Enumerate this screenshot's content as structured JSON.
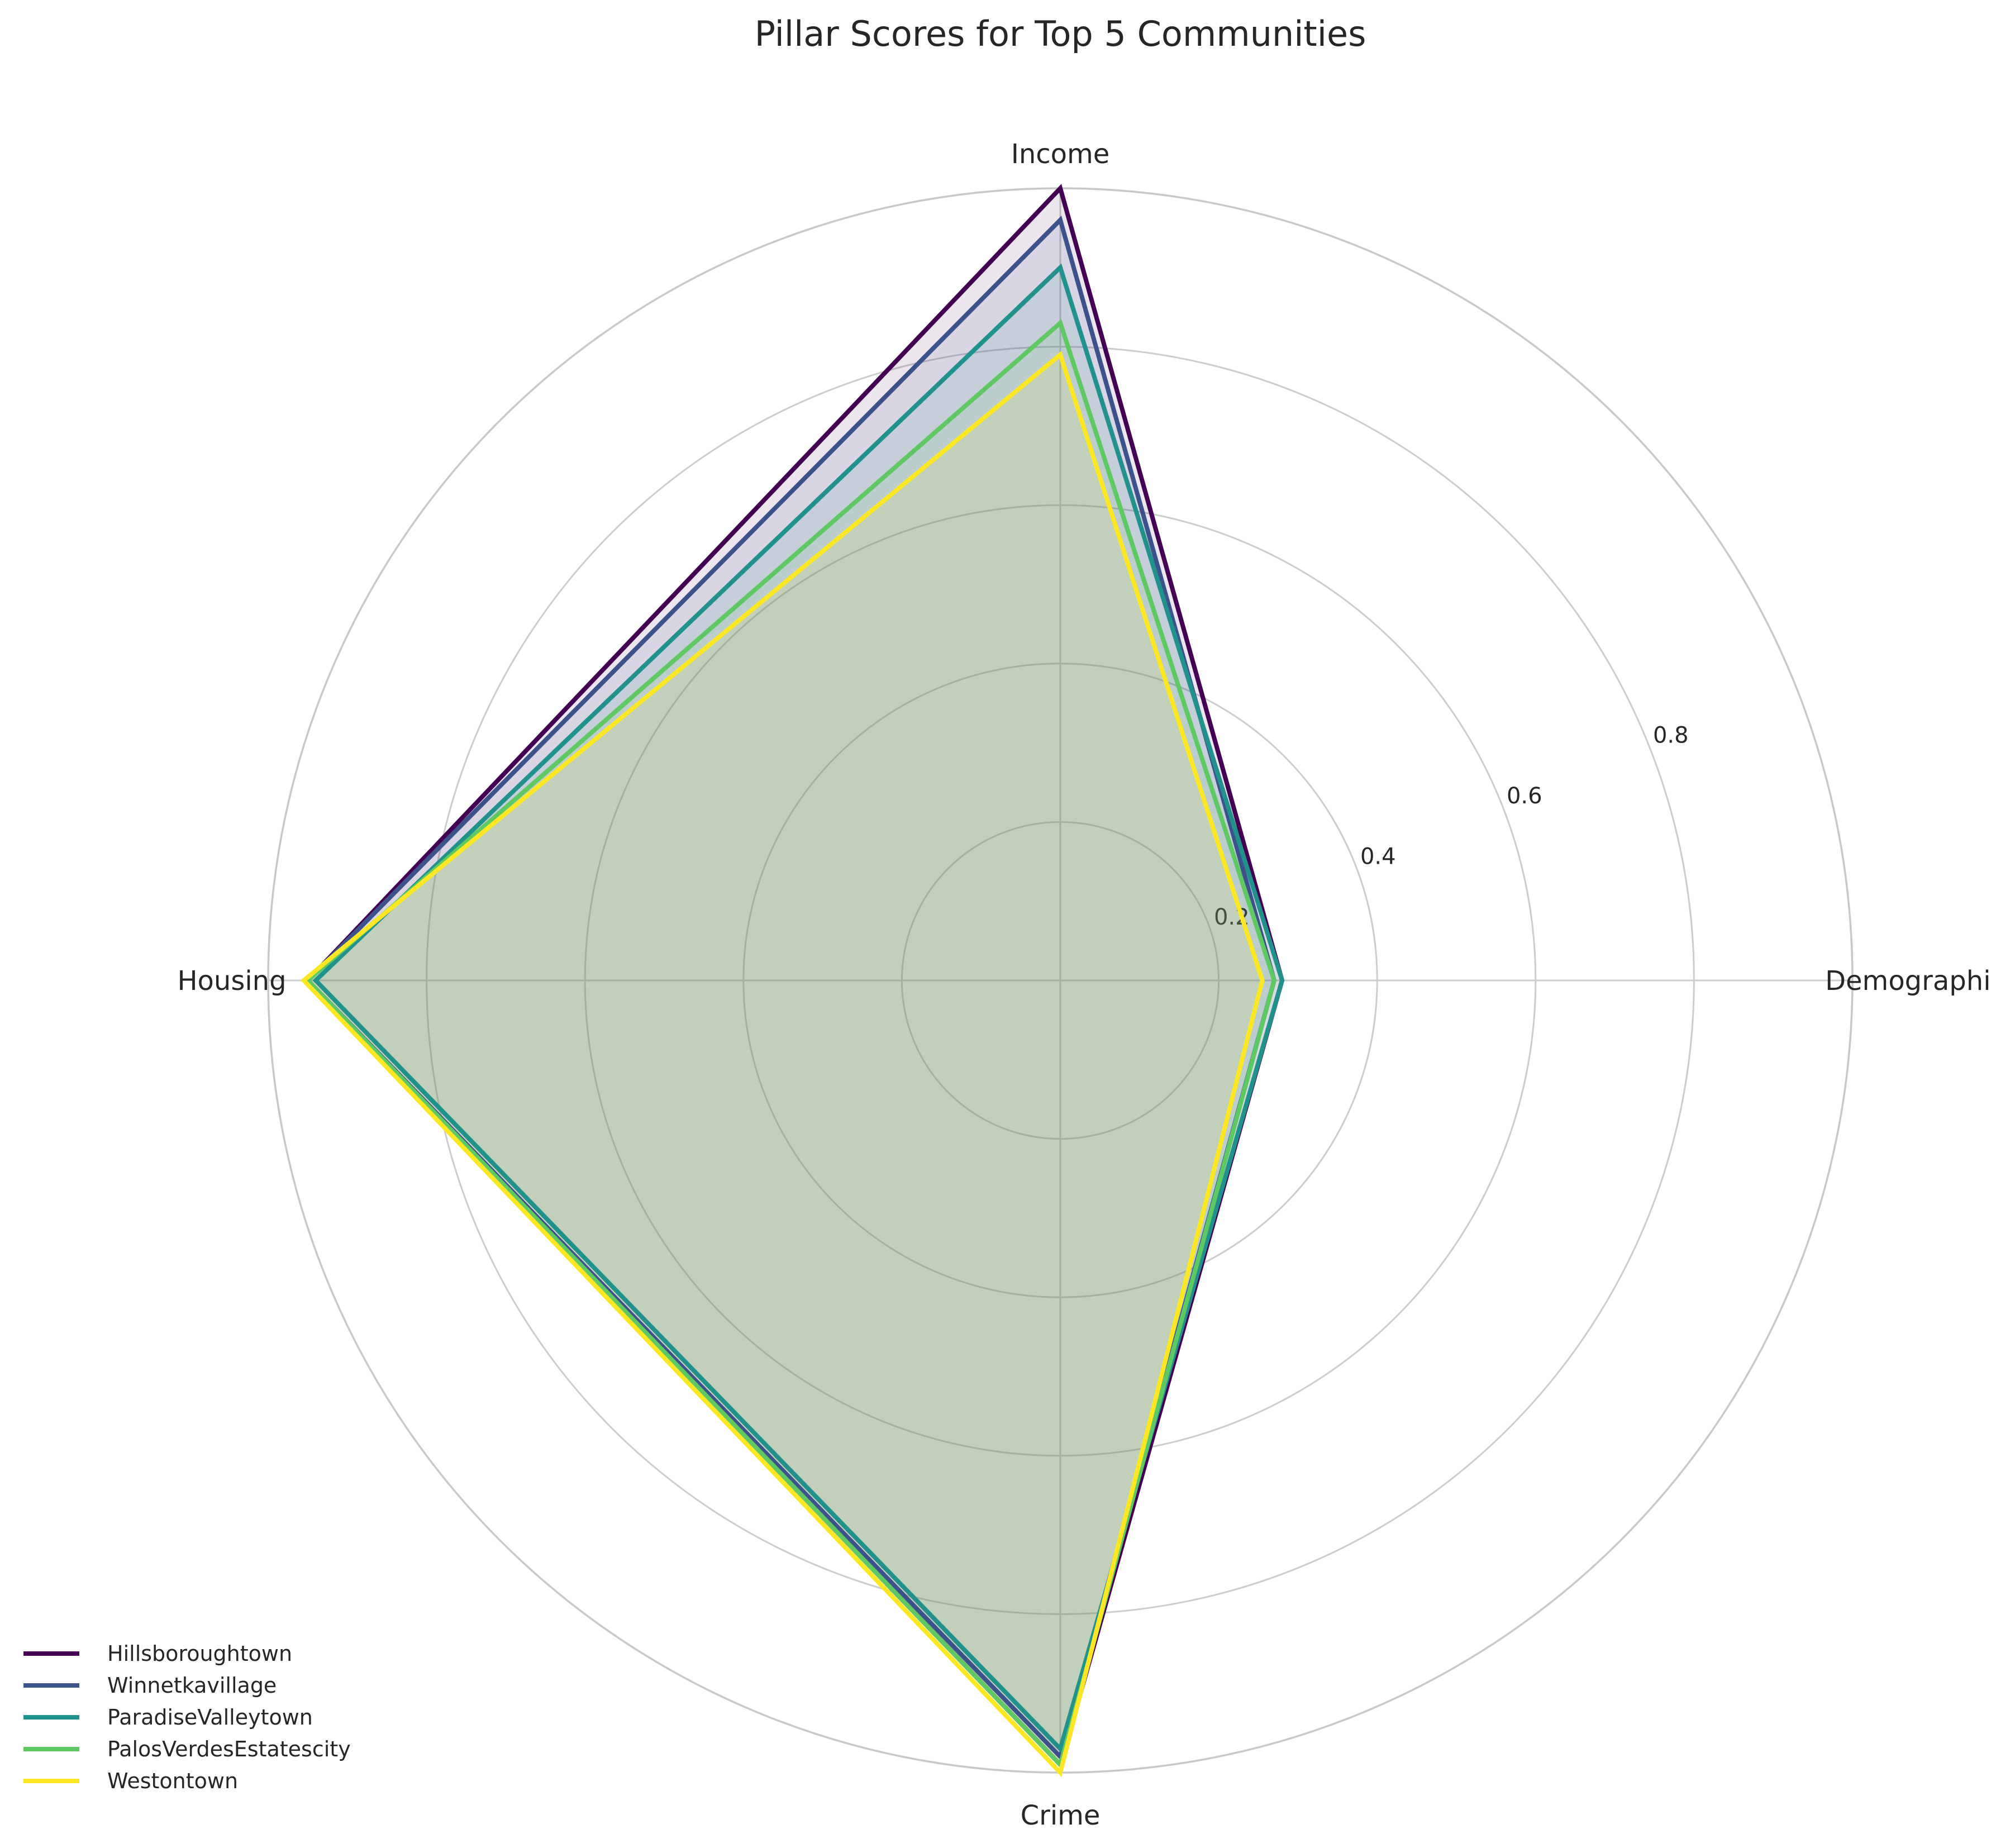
{
  "chart_data": {
    "type": "radar",
    "title": "Pillar Scores for Top 5 Communities",
    "axes": [
      "Demographics",
      "Income",
      "Housing",
      "Crime"
    ],
    "radial_ticks": [
      "0.2",
      "0.4",
      "0.6",
      "0.8"
    ],
    "radial_tick_values": [
      0.2,
      0.4,
      0.6,
      0.8
    ],
    "rlim": [
      0,
      1.0
    ],
    "grid": true,
    "legend_position": "bottom-left",
    "series": [
      {
        "name": "Hillsboroughtown",
        "color": "#440154",
        "values": [
          0.28,
          1.0,
          0.95,
          0.99
        ]
      },
      {
        "name": "Winnetkavillage",
        "color": "#3b528b",
        "values": [
          0.27,
          0.96,
          0.95,
          0.98
        ]
      },
      {
        "name": "ParadiseValleytown",
        "color": "#21918c",
        "values": [
          0.28,
          0.9,
          0.94,
          0.97
        ]
      },
      {
        "name": "PalosVerdesEstatescity",
        "color": "#5ec962",
        "values": [
          0.27,
          0.83,
          0.95,
          0.99
        ]
      },
      {
        "name": "Westontown",
        "color": "#fde725",
        "values": [
          0.255,
          0.79,
          0.955,
          1.0
        ]
      }
    ]
  }
}
